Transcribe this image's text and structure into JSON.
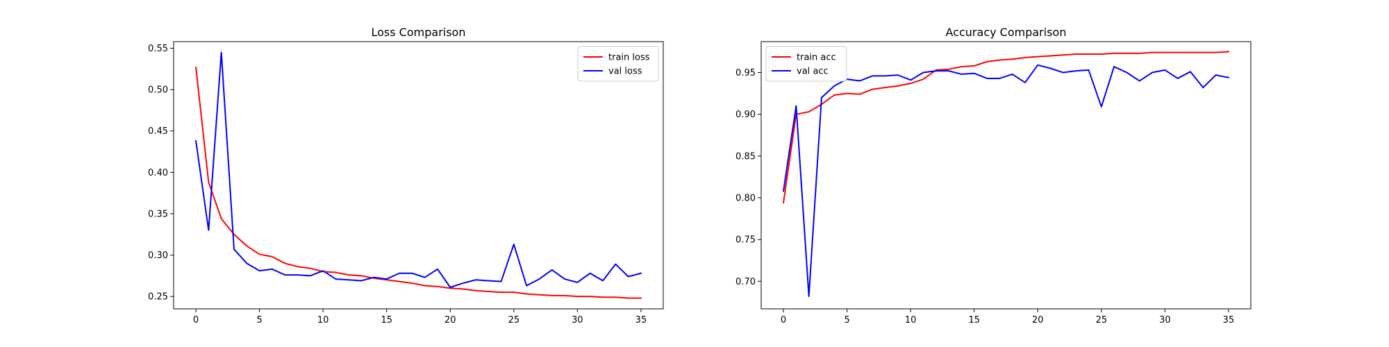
{
  "chart_data": [
    {
      "type": "line",
      "title": "Loss Comparison",
      "xlabel": "",
      "ylabel": "",
      "xlim": [
        -1.75,
        36.75
      ],
      "ylim": [
        0.235,
        0.558
      ],
      "xticks": [
        0,
        5,
        10,
        15,
        20,
        25,
        30,
        35
      ],
      "yticks": [
        0.25,
        0.3,
        0.35,
        0.4,
        0.45,
        0.5,
        0.55
      ],
      "ytick_labels": [
        "0.25",
        "0.30",
        "0.35",
        "0.40",
        "0.45",
        "0.50",
        "0.55"
      ],
      "grid": false,
      "legend_position": "top-right",
      "x": [
        0,
        1,
        2,
        3,
        4,
        5,
        6,
        7,
        8,
        9,
        10,
        11,
        12,
        13,
        14,
        15,
        16,
        17,
        18,
        19,
        20,
        21,
        22,
        23,
        24,
        25,
        26,
        27,
        28,
        29,
        30,
        31,
        32,
        33,
        34,
        35
      ],
      "series": [
        {
          "name": "train loss",
          "color": "#ff0000",
          "values": [
            0.527,
            0.388,
            0.344,
            0.325,
            0.311,
            0.301,
            0.298,
            0.29,
            0.286,
            0.284,
            0.28,
            0.279,
            0.276,
            0.275,
            0.272,
            0.27,
            0.268,
            0.266,
            0.263,
            0.262,
            0.26,
            0.259,
            0.257,
            0.256,
            0.255,
            0.255,
            0.253,
            0.252,
            0.251,
            0.251,
            0.25,
            0.25,
            0.249,
            0.249,
            0.248,
            0.248
          ]
        },
        {
          "name": "val loss",
          "color": "#0000ff",
          "values": [
            0.438,
            0.33,
            0.545,
            0.307,
            0.29,
            0.281,
            0.283,
            0.276,
            0.276,
            0.275,
            0.281,
            0.271,
            0.27,
            0.269,
            0.273,
            0.271,
            0.278,
            0.278,
            0.273,
            0.283,
            0.261,
            0.266,
            0.27,
            0.269,
            0.268,
            0.313,
            0.263,
            0.271,
            0.282,
            0.271,
            0.267,
            0.278,
            0.269,
            0.289,
            0.274,
            0.278
          ]
        }
      ]
    },
    {
      "type": "line",
      "title": "Accuracy Comparison",
      "xlabel": "",
      "ylabel": "",
      "xlim": [
        -1.75,
        36.75
      ],
      "ylim": [
        0.667,
        0.987
      ],
      "xticks": [
        0,
        5,
        10,
        15,
        20,
        25,
        30,
        35
      ],
      "yticks": [
        0.7,
        0.75,
        0.8,
        0.85,
        0.9,
        0.95
      ],
      "ytick_labels": [
        "0.70",
        "0.75",
        "0.80",
        "0.85",
        "0.90",
        "0.95"
      ],
      "grid": false,
      "legend_position": "top-left",
      "x": [
        0,
        1,
        2,
        3,
        4,
        5,
        6,
        7,
        8,
        9,
        10,
        11,
        12,
        13,
        14,
        15,
        16,
        17,
        18,
        19,
        20,
        21,
        22,
        23,
        24,
        25,
        26,
        27,
        28,
        29,
        30,
        31,
        32,
        33,
        34,
        35
      ],
      "series": [
        {
          "name": "train acc",
          "color": "#ff0000",
          "values": [
            0.794,
            0.9,
            0.903,
            0.912,
            0.923,
            0.925,
            0.924,
            0.93,
            0.932,
            0.934,
            0.937,
            0.942,
            0.953,
            0.954,
            0.957,
            0.958,
            0.963,
            0.965,
            0.966,
            0.968,
            0.969,
            0.97,
            0.971,
            0.972,
            0.972,
            0.972,
            0.973,
            0.973,
            0.973,
            0.974,
            0.974,
            0.974,
            0.974,
            0.974,
            0.974,
            0.975
          ]
        },
        {
          "name": "val acc",
          "color": "#0000ff",
          "values": [
            0.808,
            0.91,
            0.682,
            0.92,
            0.934,
            0.942,
            0.94,
            0.946,
            0.946,
            0.947,
            0.941,
            0.95,
            0.952,
            0.952,
            0.948,
            0.949,
            0.943,
            0.943,
            0.948,
            0.938,
            0.959,
            0.955,
            0.95,
            0.952,
            0.953,
            0.909,
            0.957,
            0.95,
            0.94,
            0.95,
            0.953,
            0.943,
            0.951,
            0.932,
            0.947,
            0.944
          ]
        }
      ]
    }
  ]
}
